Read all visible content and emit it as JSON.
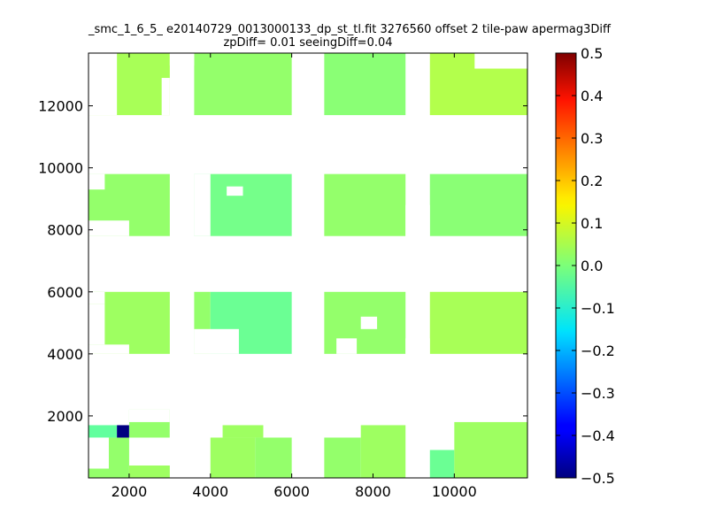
{
  "chart_data": {
    "type": "heatmap",
    "title_lines": [
      "_smc_1_6_5_ e20140729_0013000133_dp_st_tl.fit 3276560 offset 2 tile-paw apermag3Diff",
      "zpDiff= 0.01 seeingDiff=0.04"
    ],
    "xlabel": "",
    "ylabel": "",
    "xlim": [
      1000,
      11800
    ],
    "ylim": [
      0,
      13700
    ],
    "x_ticks": [
      2000,
      4000,
      6000,
      8000,
      10000
    ],
    "y_ticks": [
      2000,
      4000,
      6000,
      8000,
      10000,
      12000
    ],
    "x_tick_labels": [
      "2000",
      "4000",
      "6000",
      "8000",
      "10000"
    ],
    "y_tick_labels": [
      "2000",
      "4000",
      "6000",
      "8000",
      "10000",
      "12000"
    ],
    "colormap": "jet",
    "colorbar": {
      "vmin": -0.5,
      "vmax": 0.5,
      "ticks": [
        0.5,
        0.4,
        0.3,
        0.2,
        0.1,
        0.0,
        -0.1,
        -0.2,
        -0.3,
        -0.4,
        -0.5
      ],
      "tick_labels": [
        "0.5",
        "0.4",
        "0.3",
        "0.2",
        "0.1",
        "0.0",
        "−0.1",
        "−0.2",
        "−0.3",
        "−0.4",
        "−0.5"
      ]
    },
    "grid": false,
    "cells": [
      {
        "x0": 1000,
        "x1": 2000,
        "y0": 0,
        "y1": 1300,
        "value": 0.02
      },
      {
        "x0": 2000,
        "x1": 3000,
        "y0": 0,
        "y1": 400,
        "value": 0.03
      },
      {
        "x0": 1000,
        "x1": 1700,
        "y0": 1300,
        "y1": 1700,
        "value": -0.03
      },
      {
        "x0": 1700,
        "x1": 2000,
        "y0": 1300,
        "y1": 1700,
        "value": -0.5
      },
      {
        "x0": 2000,
        "x1": 3000,
        "y0": 1300,
        "y1": 2200,
        "value": 0.02
      },
      {
        "x0": 4000,
        "x1": 5100,
        "y0": 0,
        "y1": 1300,
        "value": 0.03
      },
      {
        "x0": 5100,
        "x1": 6000,
        "y0": 0,
        "y1": 1300,
        "value": 0.02
      },
      {
        "x0": 4300,
        "x1": 5300,
        "y0": 1300,
        "y1": 1700,
        "value": 0.03
      },
      {
        "x0": 6800,
        "x1": 7700,
        "y0": 0,
        "y1": 1300,
        "value": 0.02
      },
      {
        "x0": 7700,
        "x1": 8800,
        "y0": 0,
        "y1": 1700,
        "value": 0.03
      },
      {
        "x0": 9400,
        "x1": 10000,
        "y0": 0,
        "y1": 900,
        "value": -0.02
      },
      {
        "x0": 10000,
        "x1": 11800,
        "y0": 0,
        "y1": 1800,
        "value": 0.03
      },
      {
        "x0": 1000,
        "x1": 3000,
        "y0": 4000,
        "y1": 6000,
        "value": 0.03
      },
      {
        "x0": 3600,
        "x1": 4000,
        "y0": 4000,
        "y1": 6000,
        "value": 0.02
      },
      {
        "x0": 4000,
        "x1": 6000,
        "y0": 4000,
        "y1": 6000,
        "value": -0.02
      },
      {
        "x0": 6800,
        "x1": 8800,
        "y0": 4000,
        "y1": 6000,
        "value": 0.02
      },
      {
        "x0": 9400,
        "x1": 11800,
        "y0": 4000,
        "y1": 6000,
        "value": 0.04
      },
      {
        "x0": 1000,
        "x1": 3000,
        "y0": 7800,
        "y1": 9800,
        "value": 0.02
      },
      {
        "x0": 3600,
        "x1": 6000,
        "y0": 7800,
        "y1": 9800,
        "value": -0.01
      },
      {
        "x0": 6800,
        "x1": 8800,
        "y0": 7800,
        "y1": 9800,
        "value": 0.02
      },
      {
        "x0": 9400,
        "x1": 11800,
        "y0": 7800,
        "y1": 9800,
        "value": 0.01
      },
      {
        "x0": 1000,
        "x1": 3000,
        "y0": 11700,
        "y1": 13700,
        "value": 0.04
      },
      {
        "x0": 3600,
        "x1": 6000,
        "y0": 11700,
        "y1": 13700,
        "value": 0.02
      },
      {
        "x0": 6800,
        "x1": 8800,
        "y0": 11700,
        "y1": 13700,
        "value": 0.01
      },
      {
        "x0": 9400,
        "x1": 11800,
        "y0": 11700,
        "y1": 13700,
        "value": 0.05
      }
    ],
    "blank_regions": [
      {
        "x0": 1000,
        "x1": 1700,
        "y0": 11700,
        "y1": 13700
      },
      {
        "x0": 1000,
        "x1": 1400,
        "y0": 9300,
        "y1": 9800
      },
      {
        "x0": 1000,
        "x1": 2000,
        "y0": 7800,
        "y1": 8300
      },
      {
        "x0": 4400,
        "x1": 4800,
        "y0": 9100,
        "y1": 9400
      },
      {
        "x0": 3600,
        "x1": 4000,
        "y0": 7800,
        "y1": 9800
      },
      {
        "x0": 1000,
        "x1": 1400,
        "y0": 4300,
        "y1": 5600
      },
      {
        "x0": 1000,
        "x1": 1400,
        "y0": 5600,
        "y1": 6000
      },
      {
        "x0": 1000,
        "x1": 2000,
        "y0": 4000,
        "y1": 4300
      },
      {
        "x0": 3600,
        "x1": 4700,
        "y0": 4000,
        "y1": 4800
      },
      {
        "x0": 7100,
        "x1": 7600,
        "y0": 4000,
        "y1": 4500
      },
      {
        "x0": 7700,
        "x1": 8100,
        "y0": 4800,
        "y1": 5200
      },
      {
        "x0": 8800,
        "x1": 9400,
        "y0": 4000,
        "y1": 4500
      },
      {
        "x0": 8800,
        "x1": 9400,
        "y0": 7800,
        "y1": 8800
      },
      {
        "x0": 10500,
        "x1": 11800,
        "y0": 13200,
        "y1": 13700
      },
      {
        "x0": 2800,
        "x1": 3000,
        "y0": 11700,
        "y1": 12900
      },
      {
        "x0": 3000,
        "x1": 3600,
        "y0": 13300,
        "y1": 13700
      },
      {
        "x0": 1000,
        "x1": 1500,
        "y0": 300,
        "y1": 1300
      },
      {
        "x0": 3000,
        "x1": 3600,
        "y0": 1300,
        "y1": 1800
      },
      {
        "x0": 2000,
        "x1": 3000,
        "y0": 1800,
        "y1": 2200
      }
    ]
  }
}
